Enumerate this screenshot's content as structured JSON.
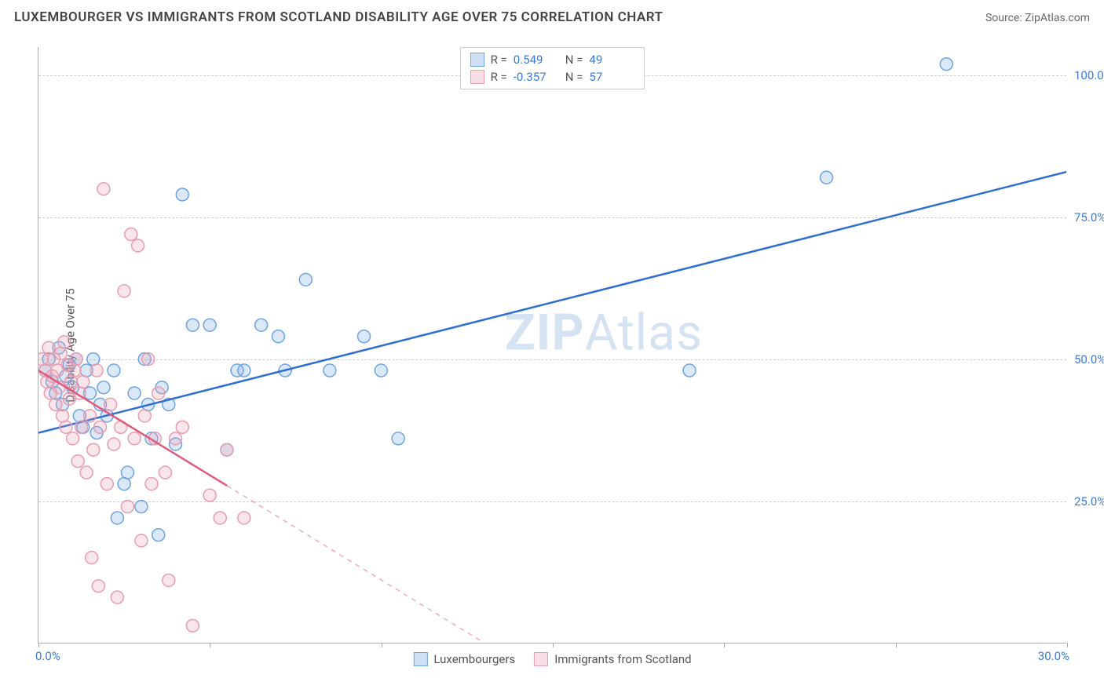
{
  "title": "LUXEMBOURGER VS IMMIGRANTS FROM SCOTLAND DISABILITY AGE OVER 75 CORRELATION CHART",
  "source": "Source: ZipAtlas.com",
  "y_axis_label": "Disability Age Over 75",
  "watermark_prefix": "ZIP",
  "watermark_suffix": "Atlas",
  "chart": {
    "type": "scatter",
    "xlim": [
      0,
      30
    ],
    "ylim": [
      0,
      105
    ],
    "x_ticks": [
      0,
      5,
      10,
      15,
      20,
      25,
      30
    ],
    "x_tick_labels": {
      "0": "0.0%",
      "30": "30.0%"
    },
    "y_gridlines": [
      25,
      50,
      75,
      100
    ],
    "y_tick_labels": {
      "25": "25.0%",
      "50": "50.0%",
      "75": "75.0%",
      "100": "100.0%"
    },
    "background_color": "#ffffff",
    "grid_color": "#cccccc",
    "axis_color": "#aaaaaa",
    "marker_radius": 8,
    "marker_stroke_width": 1.5,
    "marker_fill_opacity": 0.25,
    "series": [
      {
        "name": "Luxembourgers",
        "color": "#6fa3e0",
        "line_color": "#2f6fd0",
        "R": "0.549",
        "N": "49",
        "trend": {
          "x1": 0,
          "y1": 37,
          "x2": 30,
          "y2": 83,
          "solid_until_x": 30
        },
        "points": [
          [
            0.2,
            48
          ],
          [
            0.3,
            50
          ],
          [
            0.4,
            46
          ],
          [
            0.5,
            44
          ],
          [
            0.6,
            52
          ],
          [
            0.7,
            42
          ],
          [
            0.8,
            47
          ],
          [
            0.9,
            49
          ],
          [
            1.0,
            45
          ],
          [
            1.1,
            50
          ],
          [
            1.2,
            40
          ],
          [
            1.3,
            38
          ],
          [
            1.4,
            48
          ],
          [
            1.5,
            44
          ],
          [
            1.6,
            50
          ],
          [
            1.7,
            37
          ],
          [
            1.8,
            42
          ],
          [
            1.9,
            45
          ],
          [
            2.0,
            40
          ],
          [
            2.2,
            48
          ],
          [
            2.3,
            22
          ],
          [
            2.5,
            28
          ],
          [
            2.6,
            30
          ],
          [
            2.8,
            44
          ],
          [
            3.0,
            24
          ],
          [
            3.1,
            50
          ],
          [
            3.2,
            42
          ],
          [
            3.3,
            36
          ],
          [
            3.5,
            19
          ],
          [
            3.6,
            45
          ],
          [
            3.8,
            42
          ],
          [
            4.0,
            35
          ],
          [
            4.2,
            79
          ],
          [
            4.5,
            56
          ],
          [
            5.0,
            56
          ],
          [
            5.5,
            34
          ],
          [
            5.8,
            48
          ],
          [
            6.0,
            48
          ],
          [
            6.5,
            56
          ],
          [
            7.0,
            54
          ],
          [
            7.2,
            48
          ],
          [
            7.8,
            64
          ],
          [
            8.5,
            48
          ],
          [
            9.5,
            54
          ],
          [
            10.0,
            48
          ],
          [
            10.5,
            36
          ],
          [
            19.0,
            48
          ],
          [
            23.0,
            82
          ],
          [
            26.5,
            102
          ]
        ]
      },
      {
        "name": "Immigrants from Scotland",
        "color": "#e89cb0",
        "line_color": "#e05a7a",
        "R": "-0.357",
        "N": "57",
        "trend": {
          "x1": 0,
          "y1": 48,
          "x2": 13,
          "y2": 0,
          "solid_until_x": 5.5
        },
        "points": [
          [
            0.1,
            50
          ],
          [
            0.2,
            48
          ],
          [
            0.25,
            46
          ],
          [
            0.3,
            52
          ],
          [
            0.35,
            44
          ],
          [
            0.4,
            47
          ],
          [
            0.45,
            50
          ],
          [
            0.5,
            42
          ],
          [
            0.55,
            48
          ],
          [
            0.6,
            45
          ],
          [
            0.65,
            51
          ],
          [
            0.7,
            40
          ],
          [
            0.75,
            53
          ],
          [
            0.8,
            38
          ],
          [
            0.85,
            49
          ],
          [
            0.9,
            43
          ],
          [
            0.95,
            46
          ],
          [
            1.0,
            36
          ],
          [
            1.05,
            48
          ],
          [
            1.1,
            50
          ],
          [
            1.15,
            32
          ],
          [
            1.2,
            44
          ],
          [
            1.25,
            38
          ],
          [
            1.3,
            46
          ],
          [
            1.4,
            30
          ],
          [
            1.5,
            40
          ],
          [
            1.55,
            15
          ],
          [
            1.6,
            34
          ],
          [
            1.7,
            48
          ],
          [
            1.75,
            10
          ],
          [
            1.8,
            38
          ],
          [
            1.9,
            80
          ],
          [
            2.0,
            28
          ],
          [
            2.1,
            42
          ],
          [
            2.2,
            35
          ],
          [
            2.3,
            8
          ],
          [
            2.4,
            38
          ],
          [
            2.5,
            62
          ],
          [
            2.6,
            24
          ],
          [
            2.7,
            72
          ],
          [
            2.8,
            36
          ],
          [
            2.9,
            70
          ],
          [
            3.0,
            18
          ],
          [
            3.1,
            40
          ],
          [
            3.2,
            50
          ],
          [
            3.3,
            28
          ],
          [
            3.4,
            36
          ],
          [
            3.5,
            44
          ],
          [
            3.7,
            30
          ],
          [
            3.8,
            11
          ],
          [
            4.0,
            36
          ],
          [
            4.2,
            38
          ],
          [
            4.5,
            3
          ],
          [
            5.0,
            26
          ],
          [
            5.3,
            22
          ],
          [
            5.5,
            34
          ],
          [
            6.0,
            22
          ]
        ]
      }
    ]
  },
  "stats_legend": {
    "R_label": "R =",
    "N_label": "N ="
  },
  "colors": {
    "tick_label": "#3a7bd5",
    "text": "#555555"
  }
}
